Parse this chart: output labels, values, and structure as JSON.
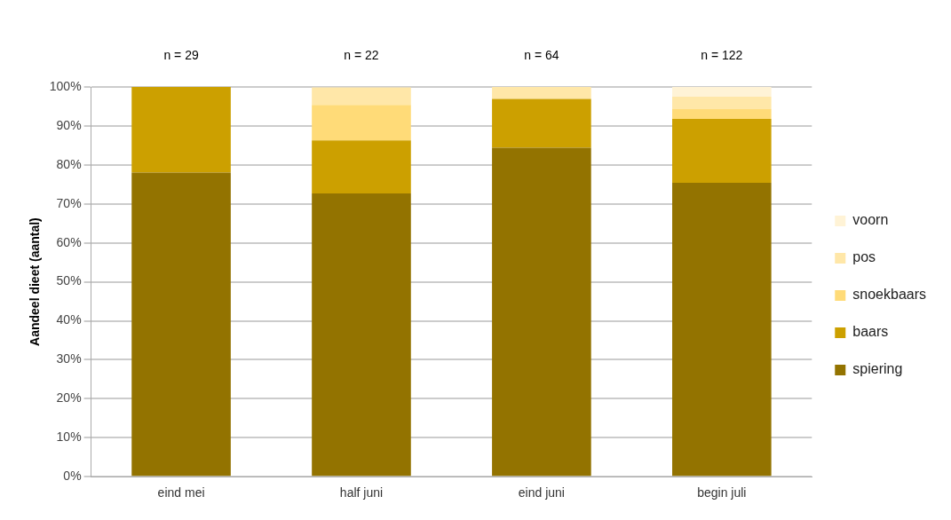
{
  "chart_data": {
    "type": "bar",
    "stacked": true,
    "ylabel": "Aandeel dieet (aantal)",
    "categories": [
      "eind mei",
      "half juni",
      "eind juni",
      "begin juli"
    ],
    "series": [
      {
        "name": "spiering",
        "color": "#937300",
        "values": [
          78,
          72.7,
          84.4,
          75.4
        ]
      },
      {
        "name": "baars",
        "color": "#cca000",
        "values": [
          22,
          13.6,
          12.5,
          16.4
        ]
      },
      {
        "name": "snoekbaars",
        "color": "#ffdb78",
        "values": [
          0,
          9.1,
          0,
          2.5
        ]
      },
      {
        "name": "pos",
        "color": "#ffe7a8",
        "values": [
          0,
          4.5,
          3.1,
          3.2
        ]
      },
      {
        "name": "voorn",
        "color": "#fff3d6",
        "values": [
          0,
          0,
          0,
          2.5
        ]
      }
    ],
    "ylim": [
      0,
      100
    ],
    "yticks": [
      {
        "value": 0,
        "label": "0%"
      },
      {
        "value": 10,
        "label": "10%"
      },
      {
        "value": 20,
        "label": "20%"
      },
      {
        "value": 30,
        "label": "30%"
      },
      {
        "value": 40,
        "label": "40%"
      },
      {
        "value": 50,
        "label": "50%"
      },
      {
        "value": 60,
        "label": "60%"
      },
      {
        "value": 70,
        "label": "70%"
      },
      {
        "value": 80,
        "label": "80%"
      },
      {
        "value": 90,
        "label": "90%"
      },
      {
        "value": 100,
        "label": "100%"
      }
    ],
    "grid": "y",
    "legend": "right",
    "annotations": [
      {
        "text": "n = 29",
        "x": "eind mei",
        "y": 100
      },
      {
        "text": "n = 22",
        "x": "half juni",
        "y": 100
      },
      {
        "text": "n = 64",
        "x": "eind juni",
        "y": 100
      },
      {
        "text": "n = 122",
        "x": "begin juli",
        "y": 100
      }
    ]
  }
}
